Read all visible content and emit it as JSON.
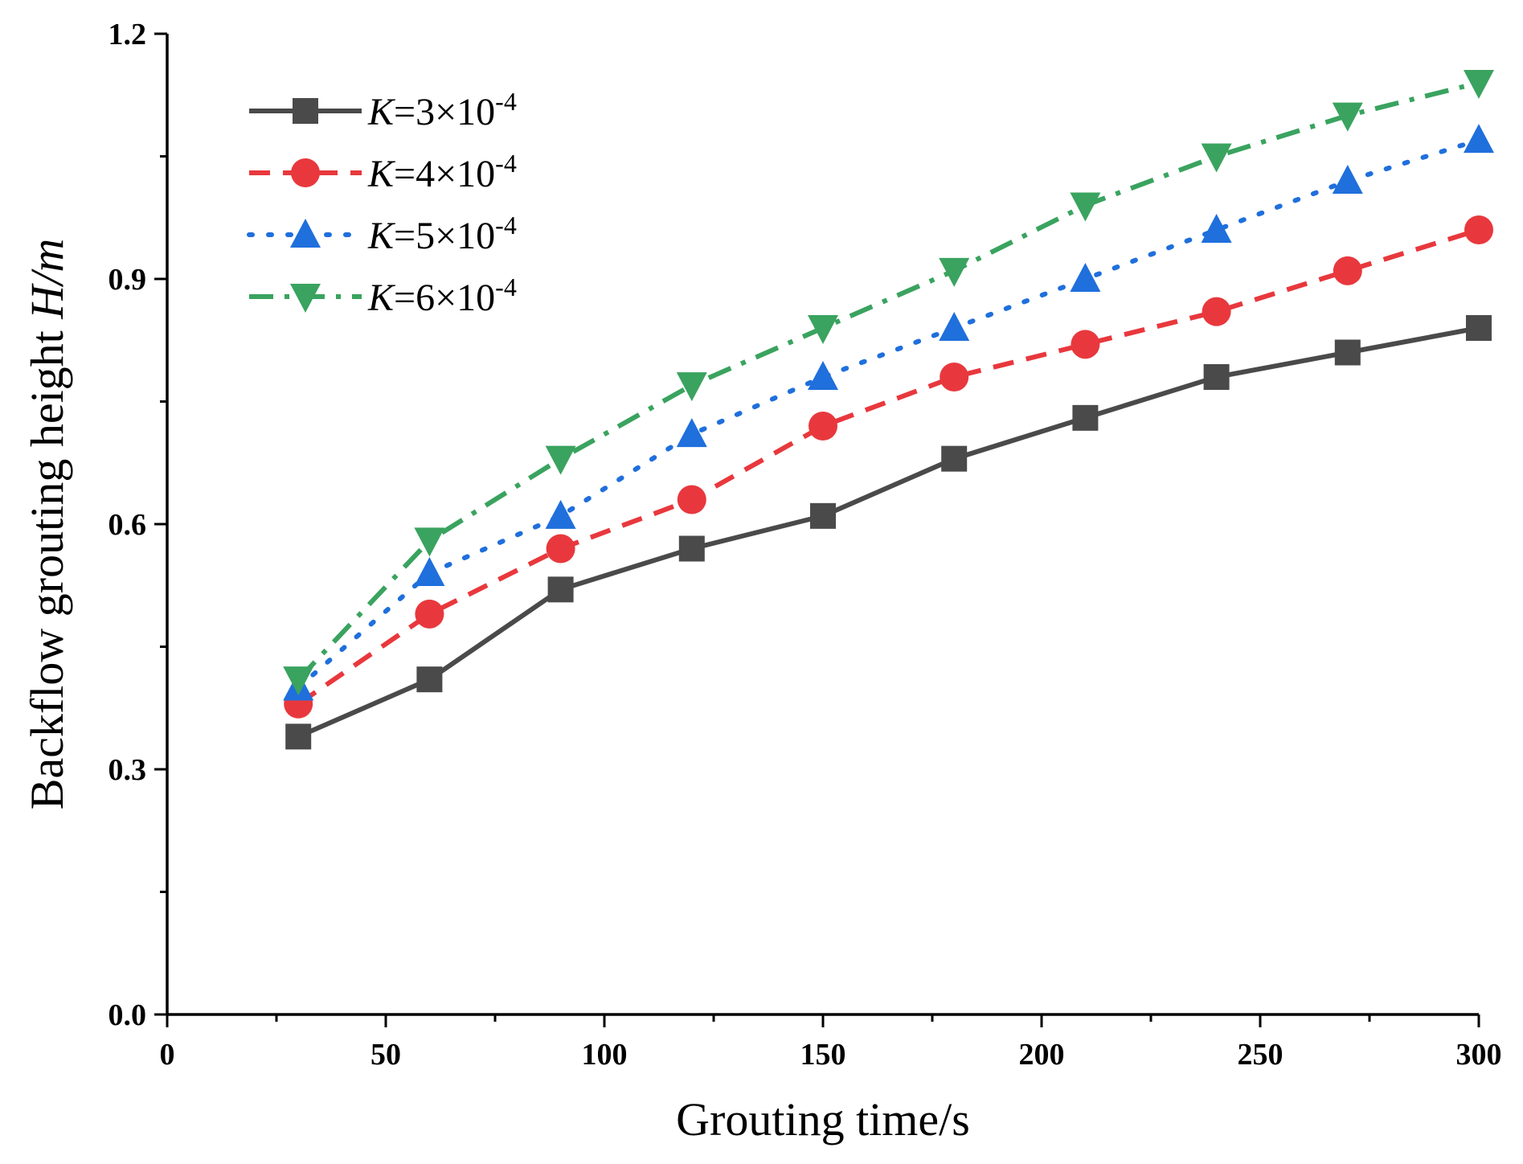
{
  "chart_data": {
    "type": "line",
    "title": "",
    "xlabel": "Grouting time/s",
    "ylabel_prefix": "Backflow grouting height ",
    "ylabel_var": "H",
    "ylabel_suffix": "/m",
    "xlim": [
      0,
      300
    ],
    "ylim": [
      0.0,
      1.2
    ],
    "x_ticks": [
      0,
      50,
      100,
      150,
      200,
      250,
      300
    ],
    "x_tick_labels": [
      "0",
      "50",
      "100",
      "150",
      "200",
      "250",
      "300"
    ],
    "y_ticks": [
      0.0,
      0.3,
      0.6,
      0.9,
      1.2
    ],
    "y_tick_labels": [
      "0.0",
      "0.3",
      "0.6",
      "0.9",
      "1.2"
    ],
    "grid": false,
    "legend_position": "top-left",
    "x": [
      30,
      60,
      90,
      120,
      150,
      180,
      210,
      240,
      270,
      300
    ],
    "series": [
      {
        "name": "K=3×10-4",
        "legend_var": "K",
        "legend_text": "=3×10",
        "legend_exp": "-4",
        "color": "#4a4a4a",
        "marker": "square",
        "dash": "solid",
        "values": [
          0.34,
          0.41,
          0.52,
          0.57,
          0.61,
          0.68,
          0.73,
          0.78,
          0.81,
          0.84
        ]
      },
      {
        "name": "K=4×10-4",
        "legend_var": "K",
        "legend_text": "=4×10",
        "legend_exp": "-4",
        "color": "#e8383d",
        "marker": "circle",
        "dash": "dash",
        "values": [
          0.38,
          0.49,
          0.57,
          0.63,
          0.72,
          0.78,
          0.82,
          0.86,
          0.91,
          0.96
        ]
      },
      {
        "name": "K=5×10-4",
        "legend_var": "K",
        "legend_text": "=5×10",
        "legend_exp": "-4",
        "color": "#1f6fdc",
        "marker": "triangle-up",
        "dash": "dot",
        "values": [
          0.4,
          0.54,
          0.61,
          0.71,
          0.78,
          0.84,
          0.9,
          0.96,
          1.02,
          1.07
        ]
      },
      {
        "name": "K=6×10-4",
        "legend_var": "K",
        "legend_text": "=6×10",
        "legend_exp": "-4",
        "color": "#3aa35f",
        "marker": "triangle-down",
        "dash": "dashdot",
        "values": [
          0.41,
          0.58,
          0.68,
          0.77,
          0.84,
          0.91,
          0.99,
          1.05,
          1.1,
          1.14
        ]
      }
    ]
  }
}
